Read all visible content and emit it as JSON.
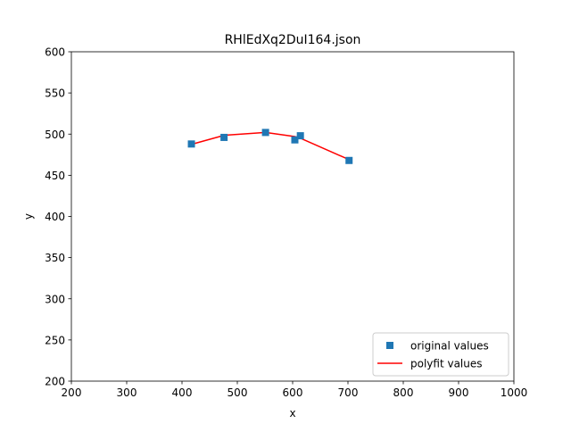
{
  "colors": {
    "original": "#1f77b4",
    "polyfit": "#ff0000",
    "axis": "#000000",
    "legend_border": "#cccccc"
  },
  "chart_data": {
    "type": "scatter",
    "title": "RHlEdXq2DuI164.json",
    "xlabel": "x",
    "ylabel": "y",
    "xlim": [
      200,
      1000
    ],
    "ylim": [
      200,
      600
    ],
    "xticks": [
      200,
      300,
      400,
      500,
      600,
      700,
      800,
      900,
      1000
    ],
    "yticks": [
      200,
      250,
      300,
      350,
      400,
      450,
      500,
      550,
      600
    ],
    "grid": false,
    "legend_position": "lower-right",
    "series": [
      {
        "name": "original values",
        "style": "markers-square",
        "x": [
          417,
          476,
          551,
          604,
          614,
          702
        ],
        "y": [
          488,
          496,
          502,
          493,
          498,
          468
        ]
      },
      {
        "name": "polyfit values",
        "style": "line",
        "x": [
          417,
          476,
          551,
          604,
          614,
          702
        ],
        "y": [
          487.5,
          498.5,
          502,
          497,
          495,
          469
        ]
      }
    ]
  }
}
